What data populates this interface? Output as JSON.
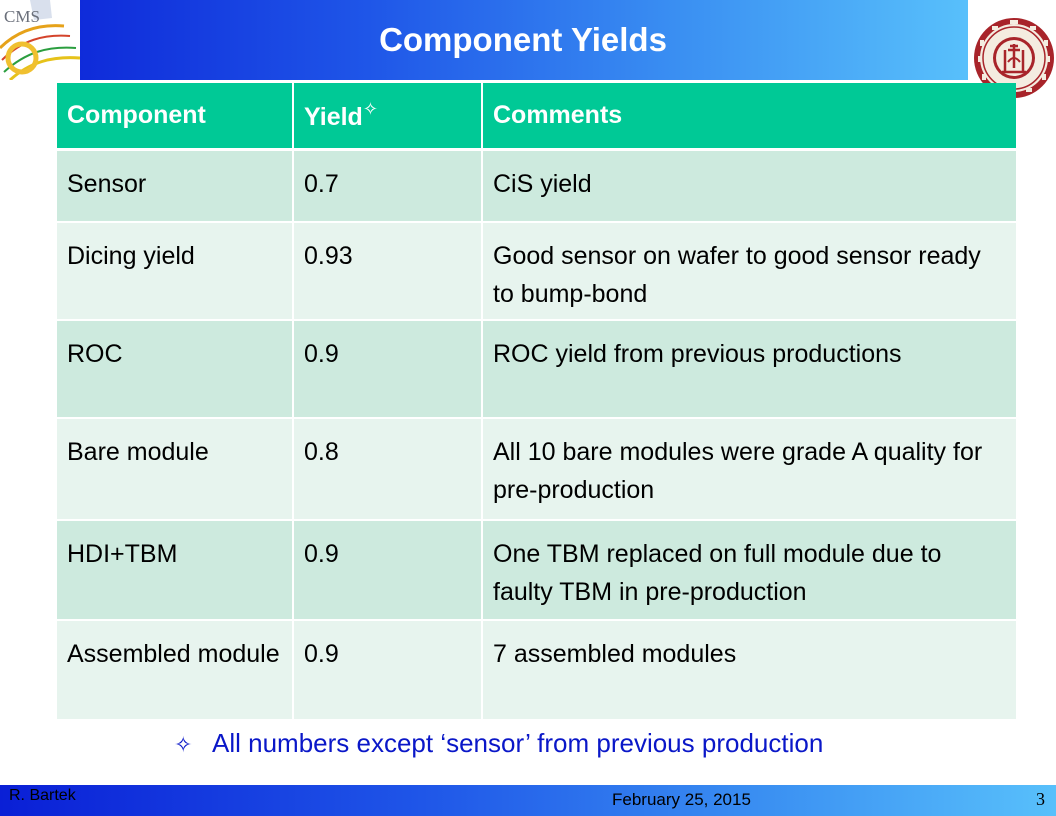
{
  "header": {
    "title": "Component Yields",
    "logo_left_text": "CMS"
  },
  "table": {
    "columns": [
      "Component",
      "Yield",
      "Comments"
    ],
    "yield_marker": "✧",
    "rows": [
      {
        "component": "Sensor",
        "yield": "0.7",
        "comment": "CiS yield"
      },
      {
        "component": "Dicing yield",
        "yield": "0.93",
        "comment": "Good sensor on wafer to good sensor ready to bump-bond"
      },
      {
        "component": "ROC",
        "yield": "0.9",
        "comment": "ROC yield from previous productions"
      },
      {
        "component": "Bare module",
        "yield": "0.8",
        "comment": "All 10 bare modules were grade A quality for pre-production"
      },
      {
        "component": "HDI+TBM",
        "yield": "0.9",
        "comment": "One TBM replaced on full module due to faulty TBM in pre-production"
      },
      {
        "component": "Assembled module",
        "yield": "0.9",
        "comment": "7 assembled modules"
      }
    ]
  },
  "footnote": {
    "bullet": "✧",
    "text": "All numbers except ‘sensor’ from previous production"
  },
  "footer": {
    "author": "R. Bartek",
    "date": "February 25, 2015",
    "page_number": "3"
  },
  "colors": {
    "banner_start": "#0a1fd6",
    "banner_end": "#58c0fb",
    "table_header": "#00c996",
    "row_odd": "#cdeade",
    "row_even": "#e7f4ee",
    "footnote_text": "#0a17c8",
    "seal_red": "#a8242a"
  }
}
